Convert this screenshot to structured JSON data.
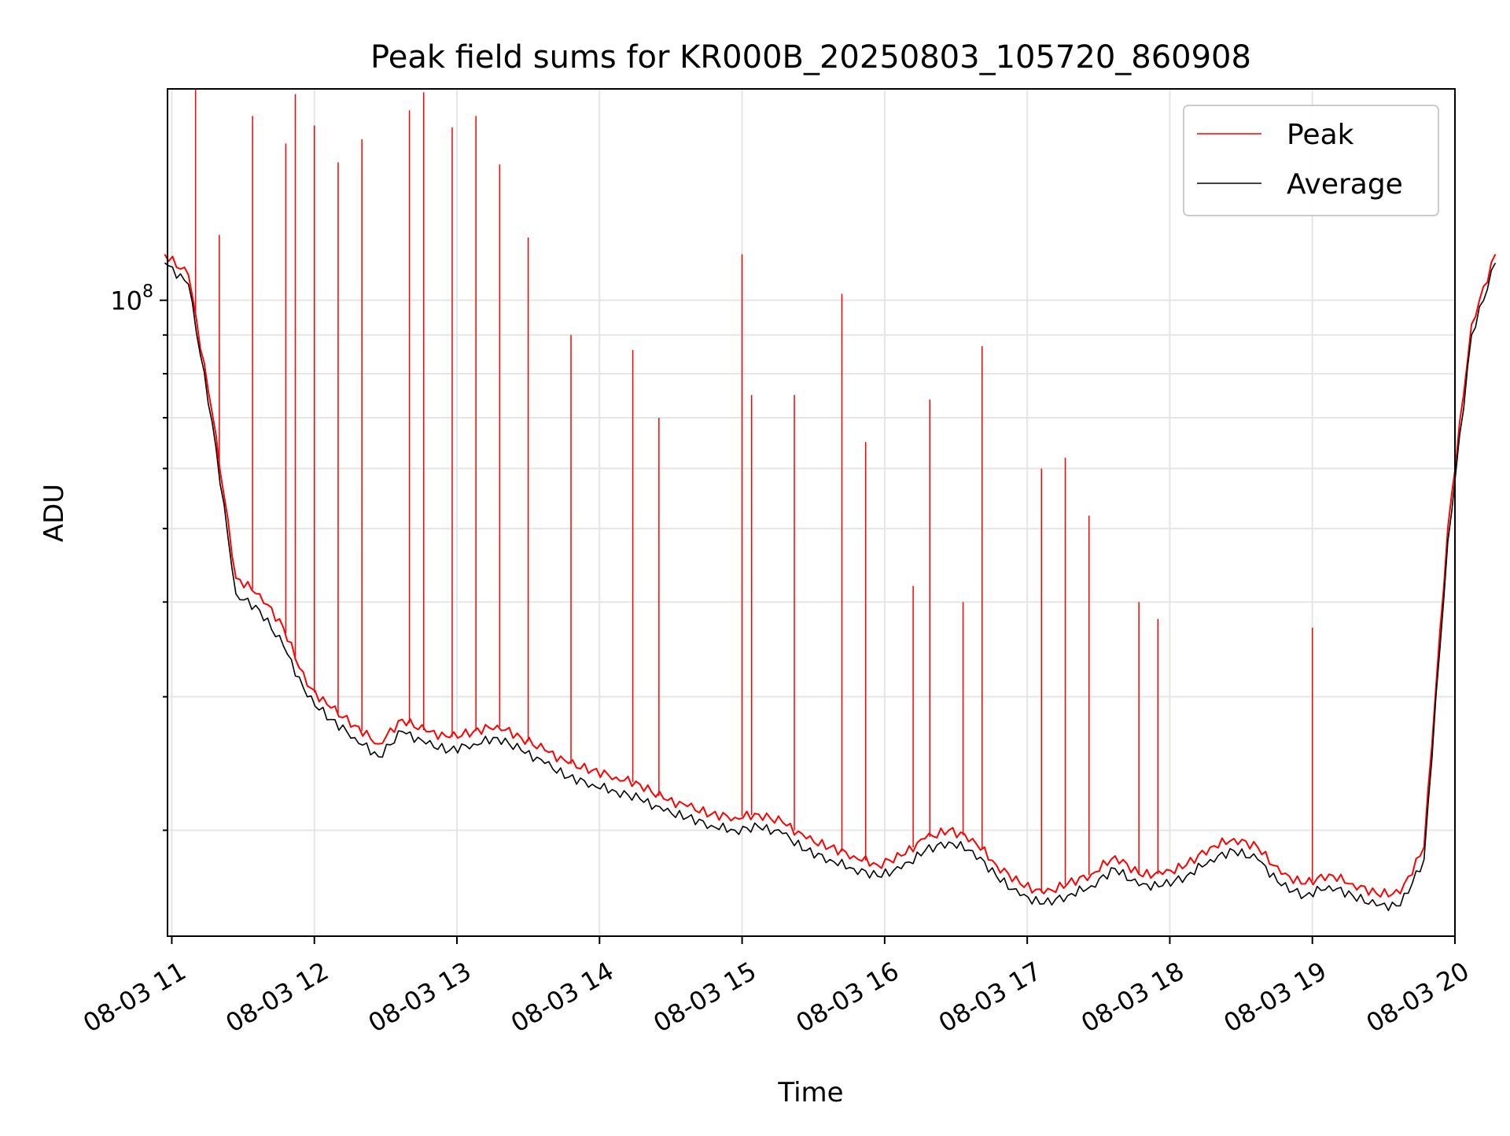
{
  "chart_data": {
    "type": "line",
    "title": "Peak field sums for KR000B_20250803_105720_860908",
    "xlabel": "Time",
    "ylabel": "ADU",
    "yscale": "log",
    "grid": true,
    "legend_position": "top-right",
    "x_start_hour": 10.97,
    "x_end_hour": 20.0,
    "xlim": [
      "08-03 10:57",
      "08-03 20:17"
    ],
    "ylim": [
      14500000,
      190000000
    ],
    "x_ticks": [
      "08-03 11",
      "08-03 12",
      "08-03 13",
      "08-03 14",
      "08-03 15",
      "08-03 16",
      "08-03 17",
      "08-03 18",
      "08-03 19",
      "08-03 20"
    ],
    "y_tick_label": {
      "base": "10",
      "exponent": "8"
    },
    "series": [
      {
        "name": "Peak",
        "color": "#ff0000",
        "x": [
          "08-03 10:57",
          "08-03 11:07",
          "08-03 11:17",
          "08-03 11:27",
          "08-03 11:37",
          "08-03 11:47",
          "08-03 11:57",
          "08-03 12:07",
          "08-03 12:17",
          "08-03 12:27",
          "08-03 12:37",
          "08-03 12:47",
          "08-03 12:57",
          "08-03 13:07",
          "08-03 13:17",
          "08-03 13:27",
          "08-03 13:37",
          "08-03 13:47",
          "08-03 13:57",
          "08-03 14:07",
          "08-03 14:17",
          "08-03 14:27",
          "08-03 14:37",
          "08-03 14:47",
          "08-03 14:57",
          "08-03 15:07",
          "08-03 15:17",
          "08-03 15:27",
          "08-03 15:37",
          "08-03 15:47",
          "08-03 15:57",
          "08-03 16:07",
          "08-03 16:17",
          "08-03 16:27",
          "08-03 16:37",
          "08-03 16:47",
          "08-03 16:57",
          "08-03 17:07",
          "08-03 17:17",
          "08-03 17:27",
          "08-03 17:37",
          "08-03 17:47",
          "08-03 17:57",
          "08-03 18:07",
          "08-03 18:17",
          "08-03 18:27",
          "08-03 18:37",
          "08-03 18:47",
          "08-03 18:57",
          "08-03 19:07",
          "08-03 19:17",
          "08-03 19:27",
          "08-03 19:37",
          "08-03 19:47",
          "08-03 19:57",
          "08-03 20:07",
          "08-03 20:17"
        ],
        "values": [
          115000000,
          108000000,
          71000000,
          43000000,
          41000000,
          37000000,
          31000000,
          29000000,
          27500000,
          26000000,
          28000000,
          27000000,
          26500000,
          27000000,
          27500000,
          26500000,
          25500000,
          24500000,
          24000000,
          23500000,
          23000000,
          22000000,
          21500000,
          21000000,
          20800000,
          21000000,
          20500000,
          19500000,
          19000000,
          18500000,
          18000000,
          18500000,
          19500000,
          20000000,
          19500000,
          18000000,
          17000000,
          16500000,
          17000000,
          17500000,
          18500000,
          17500000,
          17500000,
          18000000,
          19000000,
          19500000,
          19000000,
          17500000,
          17000000,
          17500000,
          17000000,
          16500000,
          16500000,
          19000000,
          50000000,
          93000000,
          115000000
        ],
        "spikes": [
          [
            "08-03 11:10",
            190000000
          ],
          [
            "08-03 11:20",
            122000000
          ],
          [
            "08-03 11:34",
            175000000
          ],
          [
            "08-03 11:48",
            161000000
          ],
          [
            "08-03 11:52",
            187000000
          ],
          [
            "08-03 12:00",
            170000000
          ],
          [
            "08-03 12:10",
            152000000
          ],
          [
            "08-03 12:20",
            163000000
          ],
          [
            "08-03 12:40",
            178000000
          ],
          [
            "08-03 12:46",
            188000000
          ],
          [
            "08-03 12:58",
            169000000
          ],
          [
            "08-03 13:08",
            175000000
          ],
          [
            "08-03 13:18",
            151000000
          ],
          [
            "08-03 13:30",
            121000000
          ],
          [
            "08-03 13:48",
            90000000
          ],
          [
            "08-03 14:14",
            86000000
          ],
          [
            "08-03 14:25",
            70000000
          ],
          [
            "08-03 15:00",
            115000000
          ],
          [
            "08-03 15:04",
            75000000
          ],
          [
            "08-03 15:22",
            75000000
          ],
          [
            "08-03 15:42",
            102000000
          ],
          [
            "08-03 15:52",
            65000000
          ],
          [
            "08-03 16:12",
            42000000
          ],
          [
            "08-03 16:19",
            74000000
          ],
          [
            "08-03 16:33",
            40000000
          ],
          [
            "08-03 16:41",
            87000000
          ],
          [
            "08-03 17:06",
            60000000
          ],
          [
            "08-03 17:16",
            62000000
          ],
          [
            "08-03 17:26",
            52000000
          ],
          [
            "08-03 17:47",
            40000000
          ],
          [
            "08-03 17:55",
            38000000
          ],
          [
            "08-03 19:00",
            37000000
          ]
        ]
      },
      {
        "name": "Average",
        "color": "#000000",
        "x": [
          "08-03 10:57",
          "08-03 11:07",
          "08-03 11:17",
          "08-03 11:27",
          "08-03 11:37",
          "08-03 11:47",
          "08-03 11:57",
          "08-03 12:07",
          "08-03 12:17",
          "08-03 12:27",
          "08-03 12:37",
          "08-03 12:47",
          "08-03 12:57",
          "08-03 13:07",
          "08-03 13:17",
          "08-03 13:27",
          "08-03 13:37",
          "08-03 13:47",
          "08-03 13:57",
          "08-03 14:07",
          "08-03 14:17",
          "08-03 14:27",
          "08-03 14:37",
          "08-03 14:47",
          "08-03 14:57",
          "08-03 15:07",
          "08-03 15:17",
          "08-03 15:27",
          "08-03 15:37",
          "08-03 15:47",
          "08-03 15:57",
          "08-03 16:07",
          "08-03 16:17",
          "08-03 16:27",
          "08-03 16:37",
          "08-03 16:47",
          "08-03 16:57",
          "08-03 17:07",
          "08-03 17:17",
          "08-03 17:27",
          "08-03 17:37",
          "08-03 17:47",
          "08-03 17:57",
          "08-03 18:07",
          "08-03 18:17",
          "08-03 18:27",
          "08-03 18:37",
          "08-03 18:47",
          "08-03 18:57",
          "08-03 19:07",
          "08-03 19:17",
          "08-03 19:27",
          "08-03 19:37",
          "08-03 19:47",
          "08-03 19:57",
          "08-03 20:07",
          "08-03 20:17"
        ],
        "values": [
          112000000,
          105000000,
          69000000,
          41000000,
          39000000,
          35000000,
          30000000,
          28000000,
          26500000,
          25000000,
          27000000,
          26000000,
          25500000,
          26000000,
          26500000,
          25500000,
          24500000,
          23500000,
          23000000,
          22500000,
          22000000,
          21200000,
          20800000,
          20300000,
          20000000,
          20200000,
          19800000,
          18800000,
          18300000,
          17800000,
          17400000,
          17800000,
          18800000,
          19300000,
          18800000,
          17400000,
          16400000,
          16000000,
          16400000,
          16900000,
          17800000,
          16900000,
          16900000,
          17400000,
          18300000,
          18800000,
          18300000,
          16900000,
          16400000,
          16900000,
          16400000,
          15900000,
          15900000,
          18300000,
          48000000,
          90000000,
          112000000
        ]
      }
    ]
  }
}
